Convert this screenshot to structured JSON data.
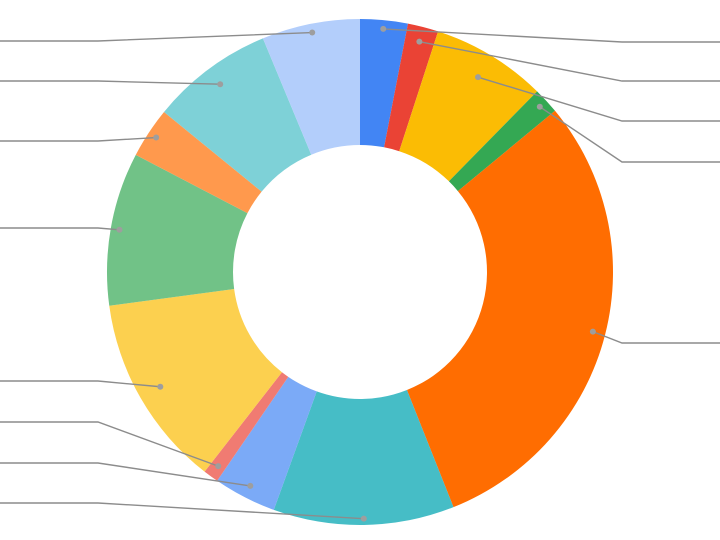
{
  "chart_data": {
    "type": "pie",
    "donut": true,
    "title": "",
    "legend": "none",
    "labels_visible": false,
    "slices": [
      {
        "value": 3.1,
        "color": "#4285F4"
      },
      {
        "value": 2.0,
        "color": "#EA4335"
      },
      {
        "value": 7.5,
        "color": "#FBBC04"
      },
      {
        "value": 1.7,
        "color": "#34A853"
      },
      {
        "value": 30.6,
        "color": "#FF6D01"
      },
      {
        "value": 11.8,
        "color": "#46BDC6"
      },
      {
        "value": 4.1,
        "color": "#7BAAF7"
      },
      {
        "value": 1.0,
        "color": "#F07B72"
      },
      {
        "value": 12.6,
        "color": "#FCD04F"
      },
      {
        "value": 10.0,
        "color": "#71C287"
      },
      {
        "value": 3.3,
        "color": "#FF994D"
      },
      {
        "value": 8.0,
        "color": "#7ED1D7"
      },
      {
        "value": 6.4,
        "color": "#B3CEFB"
      }
    ]
  }
}
